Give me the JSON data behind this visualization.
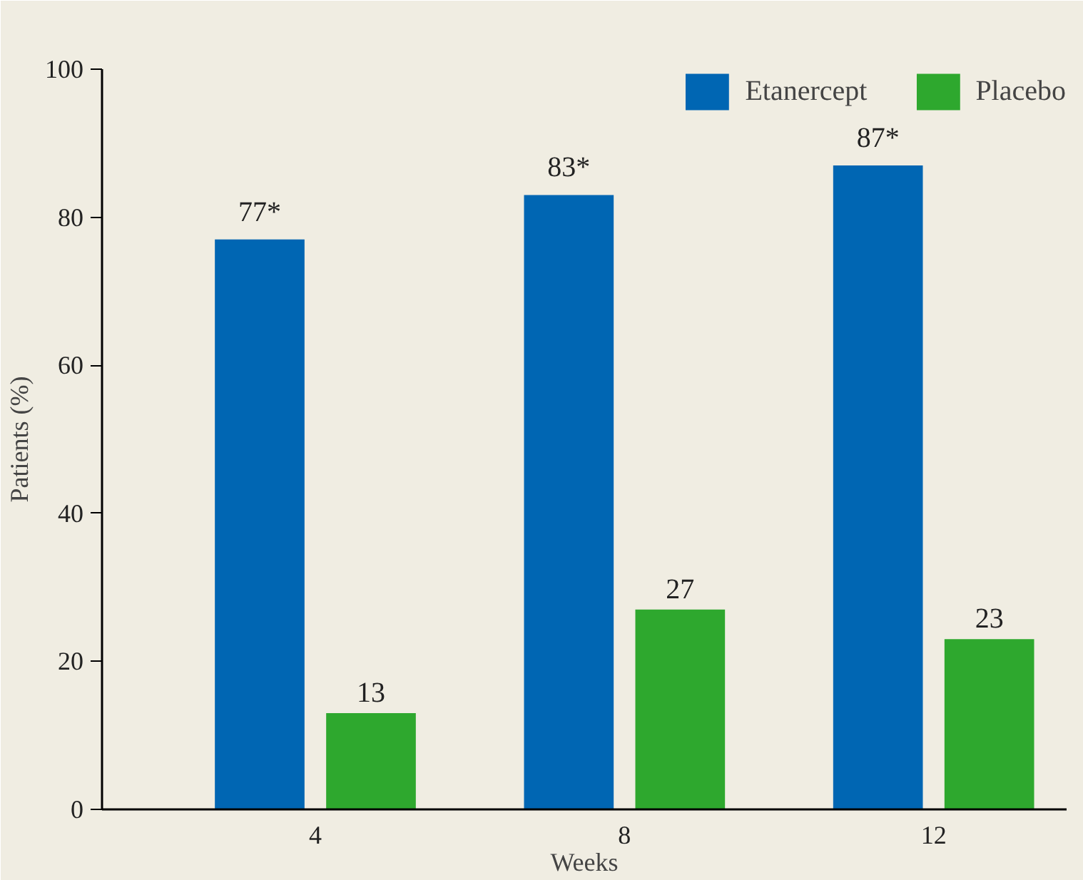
{
  "chart_data": {
    "type": "bar",
    "xlabel": "Weeks",
    "ylabel": "Patients (%)",
    "categories": [
      "4",
      "8",
      "12"
    ],
    "series": [
      {
        "name": "Etanercept",
        "color": "#0066b3",
        "values": [
          77,
          83,
          87
        ],
        "value_labels": [
          "77*",
          "83*",
          "87*"
        ]
      },
      {
        "name": "Placebo",
        "color": "#2ea82e",
        "values": [
          13,
          27,
          23
        ],
        "value_labels": [
          "13",
          "27",
          "23"
        ]
      }
    ],
    "ylim": [
      0,
      100
    ],
    "yticks": [
      0,
      20,
      40,
      60,
      80,
      100
    ],
    "grid": false,
    "legend": "top right"
  }
}
